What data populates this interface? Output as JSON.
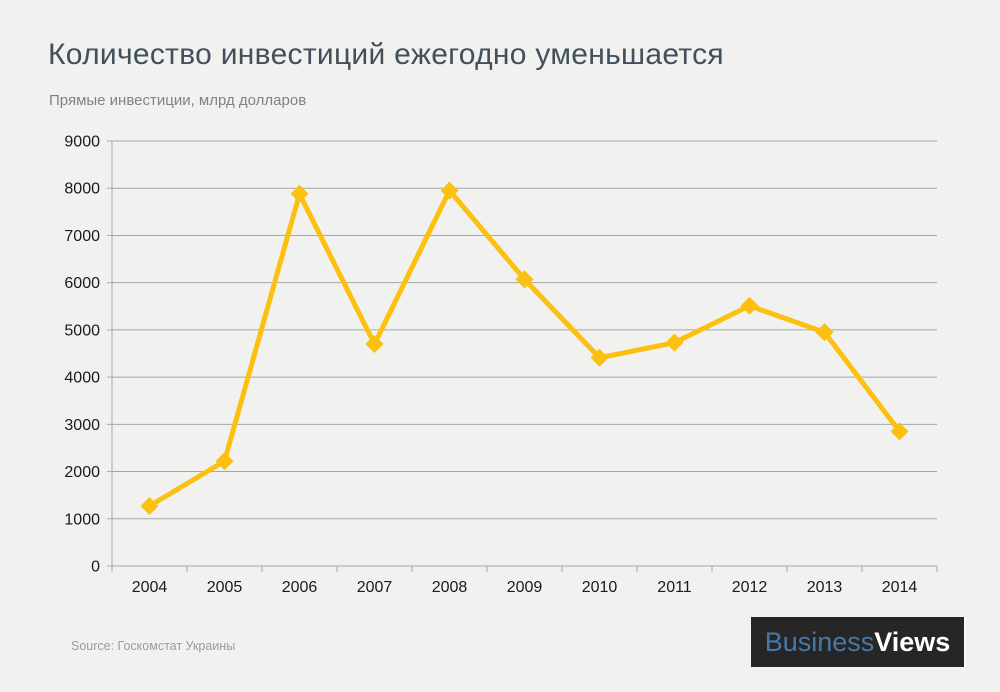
{
  "header": {
    "title": "Количество инвестиций ежегодно уменьшается",
    "subtitle": "Прямые инвестиции, млрд долларов"
  },
  "chart_data": {
    "type": "line",
    "title": "Количество инвестиций ежегодно уменьшается",
    "subtitle": "Прямые инвестиции, млрд долларов",
    "categories": [
      "2004",
      "2005",
      "2006",
      "2007",
      "2008",
      "2009",
      "2010",
      "2011",
      "2012",
      "2013",
      "2014"
    ],
    "series": [
      {
        "name": "Прямые инвестиции",
        "values": [
          1270,
          2220,
          7880,
          4700,
          7950,
          6070,
          4410,
          4730,
          5510,
          4950,
          2850
        ]
      }
    ],
    "xlabel": "",
    "ylabel": "",
    "ylim": [
      0,
      9000
    ],
    "yticks": [
      0,
      1000,
      2000,
      3000,
      4000,
      5000,
      6000,
      7000,
      8000,
      9000
    ],
    "grid": "horizontal",
    "legend": "none",
    "marker": "diamond",
    "colors": {
      "line": "#fcc011",
      "marker": "#fcc011",
      "gridline": "#a6a6a6",
      "axis": "#a6a6a6",
      "axis_label": "#1a1a1a",
      "background": "#f1f1f0"
    }
  },
  "footer": {
    "source": "Source: Госкомстат Украины",
    "logo": {
      "part1": "Business",
      "part2": "Views"
    }
  }
}
